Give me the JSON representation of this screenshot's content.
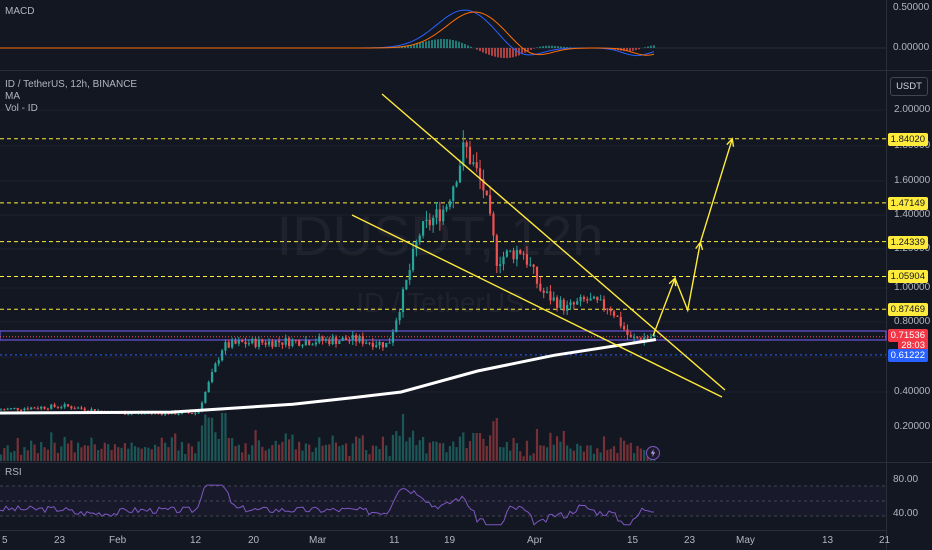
{
  "panes": {
    "macd": {
      "title": "MACD",
      "axis": [
        "0.50000",
        "0.00000"
      ]
    },
    "main": {
      "legend": [
        "ID / TetherUS, 12h, BINANCE",
        "MA",
        "Vol - ID"
      ],
      "currency": "USDT",
      "watermark_symbol": "IDUSDT, 12h",
      "watermark_name": "ID / TetherUS",
      "axis": [
        "2.00000",
        "1.80000",
        "1.60000",
        "1.40000",
        "1.20000",
        "1.00000",
        "0.80000",
        "0.40000",
        "0.20000"
      ]
    },
    "rsi": {
      "title": "RSI",
      "axis": [
        "80.00",
        "40.00"
      ]
    }
  },
  "price_tags": [
    {
      "value": "1.84020",
      "price": 1.8402,
      "style": "level"
    },
    {
      "value": "1.47149",
      "price": 1.47149,
      "style": "level"
    },
    {
      "value": "1.24339",
      "price": 1.24339,
      "style": "level"
    },
    {
      "value": "1.05904",
      "price": 1.05904,
      "style": "level"
    },
    {
      "value": "0.87469",
      "price": 0.87469,
      "style": "level"
    },
    {
      "value": "0.71536",
      "price": 0.71536,
      "style": "current"
    },
    {
      "value": "28:03",
      "price": 0.685,
      "style": "countdown"
    },
    {
      "value": "0.61222",
      "price": 0.61222,
      "style": "blue"
    }
  ],
  "time_axis": [
    "5",
    "23",
    "Feb",
    "12",
    "20",
    "Mar",
    "11",
    "19",
    "Apr",
    "15",
    "23",
    "May",
    "13",
    "21"
  ],
  "colors": {
    "background": "#131722",
    "up": "#26a69a",
    "down": "#ef5350",
    "drawing": "#ffeb3b",
    "ma": "#ffffff",
    "macd_line": "#2962ff",
    "signal_line": "#ff6d00",
    "rsi_line": "#7e57c2",
    "support_band": "#7b61ff",
    "current_tag": "#f23645",
    "blue_tag": "#2962ff"
  },
  "chart_data": {
    "type": "candlestick",
    "symbol": "ID / TetherUS",
    "interval": "12h",
    "exchange": "BINANCE",
    "levels": [
      1.8402,
      1.47149,
      1.24339,
      1.05904,
      0.87469
    ],
    "current_price": 0.71536,
    "ma_price": 0.61222,
    "price_path": [
      {
        "x": "Jan 5",
        "y": 0.3
      },
      {
        "x": "Jan 15",
        "y": 0.32
      },
      {
        "x": "Jan 23",
        "y": 0.28
      },
      {
        "x": "Feb 5",
        "y": 0.28
      },
      {
        "x": "Feb 9",
        "y": 0.66
      },
      {
        "x": "Feb 12",
        "y": 0.68
      },
      {
        "x": "Feb 20",
        "y": 0.69
      },
      {
        "x": "Mar 1",
        "y": 0.7
      },
      {
        "x": "Mar 6",
        "y": 0.67
      },
      {
        "x": "Mar 11",
        "y": 1.3
      },
      {
        "x": "Mar 15",
        "y": 1.45
      },
      {
        "x": "Mar 18",
        "y": 1.8
      },
      {
        "x": "Mar 21",
        "y": 1.55
      },
      {
        "x": "Mar 23",
        "y": 1.15
      },
      {
        "x": "Mar 27",
        "y": 1.2
      },
      {
        "x": "Mar 30",
        "y": 0.98
      },
      {
        "x": "Apr 3",
        "y": 0.88
      },
      {
        "x": "Apr 6",
        "y": 0.93
      },
      {
        "x": "Apr 10",
        "y": 0.88
      },
      {
        "x": "Apr 13",
        "y": 0.7
      },
      {
        "x": "Apr 17",
        "y": 0.72
      }
    ],
    "projection": [
      {
        "x": "Apr 17",
        "y": 0.72
      },
      {
        "x": "Apr 20",
        "y": 1.05
      },
      {
        "x": "Apr 22",
        "y": 0.87
      },
      {
        "x": "Apr 24",
        "y": 1.24
      },
      {
        "x": "Apr 29",
        "y": 1.84
      }
    ]
  }
}
